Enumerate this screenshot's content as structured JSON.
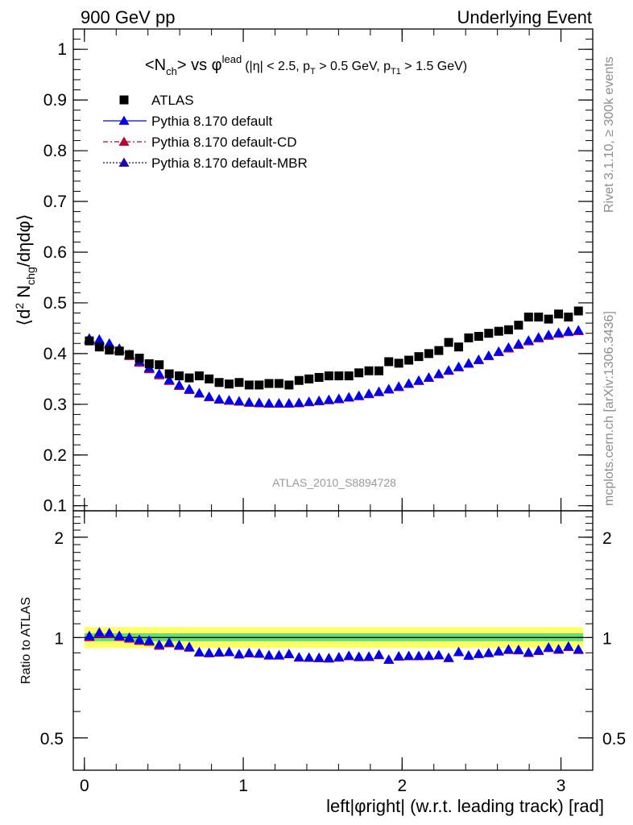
{
  "header": {
    "left": "900 GeV pp",
    "right": "Underlying Event"
  },
  "side_text": {
    "rivet": "Rivet 3.1.10, ≥ 300k events",
    "mcplots": "mcplots.cern.ch [arXiv:1306.3436]"
  },
  "chart_data": [
    {
      "type": "scatter",
      "title": {
        "main": "<N",
        "main_sub": "ch",
        "mid": "> vs φ",
        "mid_sup": "lead",
        "cut1": "(|η| < 2.5, p",
        "cut1_sub": "T",
        "cut2": " > 0.5 GeV, p",
        "cut2_sub": "T1",
        "cut3": " > 1.5 GeV)"
      },
      "ylabel": {
        "p1": "⟨d",
        "sup": "2",
        "p2": " N",
        "sub": "chg",
        "p3": "/dηdφ⟩"
      },
      "analysis_label": "ATLAS_2010_S8894728",
      "xlim": [
        -0.07,
        3.2
      ],
      "ylim": [
        0.09,
        1.04
      ],
      "yticks": [
        0.1,
        0.2,
        0.3,
        0.4,
        0.5,
        0.6,
        0.7,
        0.8,
        0.9,
        1
      ],
      "ytick_labels": [
        "0.1",
        "0.2",
        "0.3",
        "0.4",
        "0.5",
        "0.6",
        "0.7",
        "0.8",
        "0.9",
        "1"
      ],
      "legend_position": "top-left",
      "x": [
        0.031,
        0.094,
        0.157,
        0.22,
        0.283,
        0.346,
        0.408,
        0.471,
        0.534,
        0.597,
        0.66,
        0.723,
        0.785,
        0.848,
        0.911,
        0.974,
        1.037,
        1.1,
        1.162,
        1.225,
        1.288,
        1.351,
        1.414,
        1.477,
        1.539,
        1.602,
        1.665,
        1.728,
        1.791,
        1.854,
        1.916,
        1.979,
        2.042,
        2.105,
        2.168,
        2.231,
        2.293,
        2.356,
        2.419,
        2.482,
        2.545,
        2.608,
        2.67,
        2.733,
        2.796,
        2.859,
        2.922,
        2.985,
        3.047,
        3.11
      ],
      "series": [
        {
          "name": "ATLAS",
          "color": "#000000",
          "marker": "square",
          "values": [
            0.425,
            0.413,
            0.407,
            0.405,
            0.398,
            0.391,
            0.38,
            0.378,
            0.36,
            0.356,
            0.352,
            0.356,
            0.35,
            0.343,
            0.34,
            0.343,
            0.338,
            0.338,
            0.341,
            0.341,
            0.338,
            0.347,
            0.35,
            0.353,
            0.356,
            0.356,
            0.356,
            0.362,
            0.366,
            0.366,
            0.384,
            0.381,
            0.387,
            0.394,
            0.4,
            0.406,
            0.422,
            0.413,
            0.431,
            0.434,
            0.44,
            0.444,
            0.447,
            0.456,
            0.472,
            0.472,
            0.468,
            0.478,
            0.472,
            0.484
          ]
        },
        {
          "name": "Pythia 8.170 default",
          "color": "#0000ee",
          "marker": "triangle",
          "line": "solid",
          "values": [
            0.43,
            0.428,
            0.42,
            0.41,
            0.398,
            0.385,
            0.372,
            0.36,
            0.348,
            0.338,
            0.33,
            0.322,
            0.315,
            0.31,
            0.308,
            0.306,
            0.304,
            0.303,
            0.302,
            0.302,
            0.302,
            0.303,
            0.305,
            0.307,
            0.309,
            0.311,
            0.314,
            0.317,
            0.321,
            0.325,
            0.33,
            0.335,
            0.341,
            0.347,
            0.353,
            0.36,
            0.367,
            0.374,
            0.381,
            0.388,
            0.396,
            0.404,
            0.412,
            0.419,
            0.426,
            0.432,
            0.437,
            0.441,
            0.444,
            0.446
          ]
        },
        {
          "name": "Pythia 8.170 default-CD",
          "color": "#bb0033",
          "marker": "triangle",
          "line": "dashdot",
          "values": [
            0.426,
            0.424,
            0.417,
            0.407,
            0.395,
            0.382,
            0.369,
            0.357,
            0.346,
            0.336,
            0.328,
            0.321,
            0.314,
            0.309,
            0.307,
            0.305,
            0.303,
            0.302,
            0.301,
            0.301,
            0.301,
            0.302,
            0.304,
            0.306,
            0.308,
            0.31,
            0.313,
            0.316,
            0.32,
            0.324,
            0.329,
            0.334,
            0.34,
            0.346,
            0.352,
            0.359,
            0.366,
            0.373,
            0.38,
            0.387,
            0.395,
            0.403,
            0.41,
            0.417,
            0.424,
            0.43,
            0.435,
            0.439,
            0.442,
            0.444
          ]
        },
        {
          "name": "Pythia 8.170 default-MBR",
          "color": "#2200aa",
          "marker": "triangle",
          "line": "dotted",
          "values": [
            0.428,
            0.426,
            0.419,
            0.409,
            0.397,
            0.384,
            0.371,
            0.359,
            0.347,
            0.337,
            0.329,
            0.321,
            0.314,
            0.309,
            0.307,
            0.305,
            0.303,
            0.302,
            0.301,
            0.301,
            0.301,
            0.302,
            0.304,
            0.306,
            0.308,
            0.31,
            0.313,
            0.316,
            0.32,
            0.324,
            0.329,
            0.334,
            0.34,
            0.346,
            0.352,
            0.359,
            0.366,
            0.373,
            0.38,
            0.387,
            0.395,
            0.403,
            0.411,
            0.418,
            0.425,
            0.431,
            0.436,
            0.44,
            0.443,
            0.445
          ]
        }
      ]
    },
    {
      "type": "scatter",
      "ylabel": "Ratio to ATLAS",
      "xlabel": "left|φright| (w.r.t. leading track) [rad]",
      "yscale": "log",
      "xlim": [
        -0.07,
        3.2
      ],
      "ylim": [
        0.4,
        2.4
      ],
      "yticks": [
        0.5,
        1,
        2
      ],
      "ytick_labels": [
        "0.5",
        "1",
        "2"
      ],
      "xticks": [
        0,
        1,
        2,
        3
      ],
      "xtick_labels": [
        "0",
        "1",
        "2",
        "3"
      ],
      "bands": [
        {
          "name": "total-uncertainty",
          "color": "#ffff66",
          "lo": 0.93,
          "hi": 1.075
        },
        {
          "name": "statistical-uncertainty",
          "color": "#66dd77",
          "lo": 0.975,
          "hi": 1.03
        }
      ],
      "reference_line": 1
    }
  ]
}
